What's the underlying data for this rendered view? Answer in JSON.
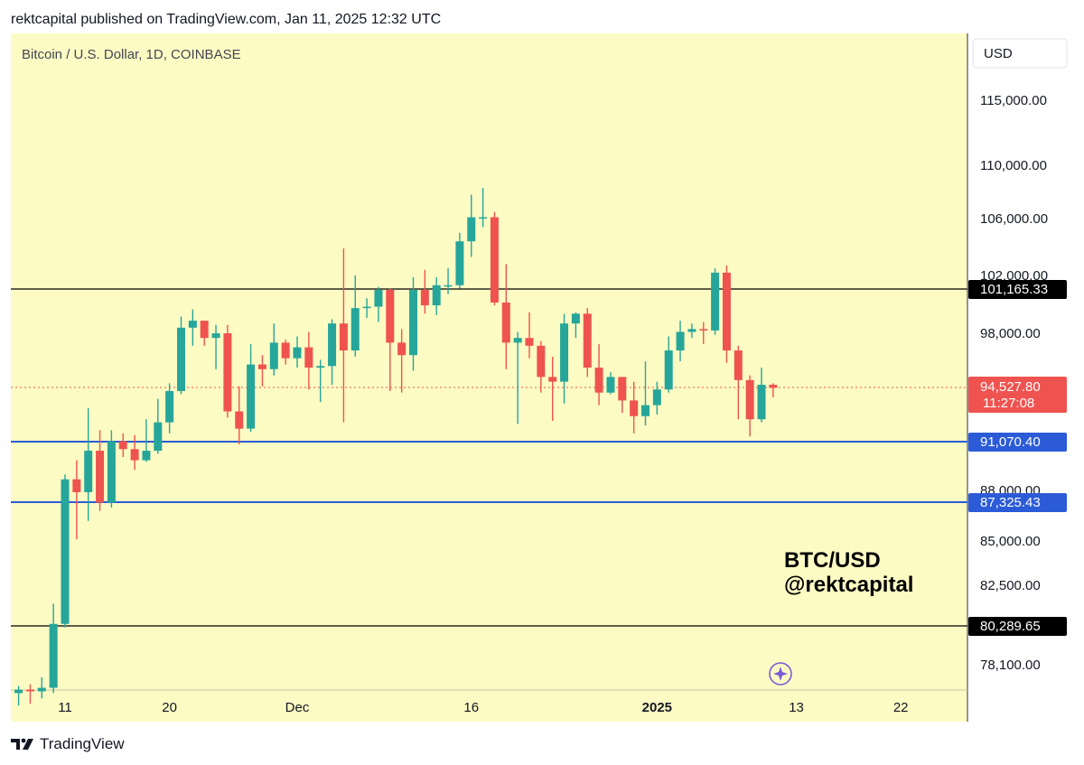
{
  "header": {
    "published": "rektcapital published on TradingView.com, Jan 11, 2025 12:32 UTC"
  },
  "footer": {
    "brand": "TradingView"
  },
  "chart_data": {
    "type": "candlestick",
    "title": "Bitcoin / U.S. Dollar, 1D, COINBASE",
    "currency_button": "USD",
    "watermark": [
      "BTC/USD",
      "@rektcapital"
    ],
    "y_ticks": [
      {
        "value": 115000,
        "label": "115,000.00"
      },
      {
        "value": 110000,
        "label": "110,000.00"
      },
      {
        "value": 106000,
        "label": "106,000.00"
      },
      {
        "value": 102000,
        "label": "102,000.00"
      },
      {
        "value": 98000,
        "label": "98,000.00"
      },
      {
        "value": 88000,
        "label": "88,000.00"
      },
      {
        "value": 85000,
        "label": "85,000.00"
      },
      {
        "value": 82500,
        "label": "82,500.00"
      },
      {
        "value": 78100,
        "label": "78,100.00"
      }
    ],
    "x_ticks": [
      {
        "label": "11",
        "date": "2024-11-11",
        "bold": false
      },
      {
        "label": "20",
        "date": "2024-11-20",
        "bold": false
      },
      {
        "label": "Dec",
        "date": "2024-12-01",
        "bold": false
      },
      {
        "label": "16",
        "date": "2024-12-16",
        "bold": false
      },
      {
        "label": "2025",
        "date": "2025-01-01",
        "bold": true
      },
      {
        "label": "13",
        "date": "2025-01-13",
        "bold": false
      },
      {
        "label": "22",
        "date": "2025-01-22",
        "bold": false
      }
    ],
    "levels": [
      {
        "price": 101165.33,
        "label": "101,165.33",
        "color": "#000000",
        "line": "solid",
        "tag_bg": "#000000"
      },
      {
        "price": 91070.4,
        "label": "91,070.40",
        "color": "#2b5bd7",
        "line": "solid",
        "tag_bg": "#2b5bd7"
      },
      {
        "price": 87325.43,
        "label": "87,325.43",
        "color": "#2b5bd7",
        "line": "solid",
        "tag_bg": "#2b5bd7"
      },
      {
        "price": 80289.65,
        "label": "80,289.65",
        "color": "#000000",
        "line": "solid",
        "tag_bg": "#000000"
      }
    ],
    "last_price": {
      "price": 94527.8,
      "label": "94,527.80",
      "countdown": "11:27:08",
      "color": "#ef5350"
    },
    "colors": {
      "up": "#26a69a",
      "down": "#ef5350",
      "background": "#fdfbc4"
    },
    "candles": [
      {
        "date": "2024-11-07",
        "o": 76500,
        "h": 76900,
        "l": 75800,
        "c": 76700
      },
      {
        "date": "2024-11-08",
        "o": 76700,
        "h": 77000,
        "l": 75900,
        "c": 76600
      },
      {
        "date": "2024-11-09",
        "o": 76600,
        "h": 77400,
        "l": 76200,
        "c": 76800
      },
      {
        "date": "2024-11-10",
        "o": 76800,
        "h": 81500,
        "l": 76500,
        "c": 80400
      },
      {
        "date": "2024-11-11",
        "o": 80400,
        "h": 89000,
        "l": 80200,
        "c": 88700
      },
      {
        "date": "2024-11-12",
        "o": 88700,
        "h": 89900,
        "l": 85100,
        "c": 87900
      },
      {
        "date": "2024-11-13",
        "o": 87900,
        "h": 93200,
        "l": 86200,
        "c": 90500
      },
      {
        "date": "2024-11-14",
        "o": 90500,
        "h": 91800,
        "l": 86800,
        "c": 87300
      },
      {
        "date": "2024-11-15",
        "o": 87300,
        "h": 91800,
        "l": 87000,
        "c": 91100
      },
      {
        "date": "2024-11-16",
        "o": 91100,
        "h": 91600,
        "l": 90100,
        "c": 90600
      },
      {
        "date": "2024-11-17",
        "o": 90600,
        "h": 91500,
        "l": 89300,
        "c": 89900
      },
      {
        "date": "2024-11-18",
        "o": 89900,
        "h": 92500,
        "l": 89800,
        "c": 90500
      },
      {
        "date": "2024-11-19",
        "o": 90500,
        "h": 93800,
        "l": 90300,
        "c": 92300
      },
      {
        "date": "2024-11-20",
        "o": 92300,
        "h": 94800,
        "l": 91600,
        "c": 94300
      },
      {
        "date": "2024-11-21",
        "o": 94300,
        "h": 99200,
        "l": 94100,
        "c": 98400
      },
      {
        "date": "2024-11-22",
        "o": 98400,
        "h": 99700,
        "l": 97200,
        "c": 98900
      },
      {
        "date": "2024-11-23",
        "o": 98900,
        "h": 98900,
        "l": 97200,
        "c": 97700
      },
      {
        "date": "2024-11-24",
        "o": 97700,
        "h": 98600,
        "l": 95700,
        "c": 98000
      },
      {
        "date": "2024-11-25",
        "o": 98000,
        "h": 98600,
        "l": 92600,
        "c": 93000
      },
      {
        "date": "2024-11-26",
        "o": 93000,
        "h": 94600,
        "l": 90900,
        "c": 91900
      },
      {
        "date": "2024-11-27",
        "o": 91900,
        "h": 97300,
        "l": 91700,
        "c": 96000
      },
      {
        "date": "2024-11-28",
        "o": 96000,
        "h": 96600,
        "l": 94600,
        "c": 95700
      },
      {
        "date": "2024-11-29",
        "o": 95700,
        "h": 98700,
        "l": 95300,
        "c": 97400
      },
      {
        "date": "2024-11-30",
        "o": 97400,
        "h": 97600,
        "l": 96000,
        "c": 96400
      },
      {
        "date": "2024-12-01",
        "o": 96400,
        "h": 97800,
        "l": 95800,
        "c": 97100
      },
      {
        "date": "2024-12-02",
        "o": 97100,
        "h": 98100,
        "l": 94400,
        "c": 95800
      },
      {
        "date": "2024-12-03",
        "o": 95800,
        "h": 96300,
        "l": 93600,
        "c": 95900
      },
      {
        "date": "2024-12-04",
        "o": 95900,
        "h": 99000,
        "l": 94700,
        "c": 98700
      },
      {
        "date": "2024-12-05",
        "o": 98700,
        "h": 103900,
        "l": 92300,
        "c": 96900
      },
      {
        "date": "2024-12-06",
        "o": 96900,
        "h": 102000,
        "l": 96500,
        "c": 99800
      },
      {
        "date": "2024-12-07",
        "o": 99800,
        "h": 100500,
        "l": 99100,
        "c": 99900
      },
      {
        "date": "2024-12-08",
        "o": 99900,
        "h": 101300,
        "l": 98800,
        "c": 101100
      },
      {
        "date": "2024-12-09",
        "o": 101100,
        "h": 101200,
        "l": 94300,
        "c": 97400
      },
      {
        "date": "2024-12-10",
        "o": 97400,
        "h": 98300,
        "l": 94200,
        "c": 96600
      },
      {
        "date": "2024-12-11",
        "o": 96600,
        "h": 101900,
        "l": 95600,
        "c": 101100
      },
      {
        "date": "2024-12-12",
        "o": 101100,
        "h": 102400,
        "l": 99400,
        "c": 100000
      },
      {
        "date": "2024-12-13",
        "o": 100000,
        "h": 101900,
        "l": 99300,
        "c": 101400
      },
      {
        "date": "2024-12-14",
        "o": 101400,
        "h": 102500,
        "l": 100800,
        "c": 101400
      },
      {
        "date": "2024-12-15",
        "o": 101400,
        "h": 105000,
        "l": 101200,
        "c": 104400
      },
      {
        "date": "2024-12-16",
        "o": 104400,
        "h": 107800,
        "l": 103300,
        "c": 106100
      },
      {
        "date": "2024-12-17",
        "o": 106100,
        "h": 108300,
        "l": 105400,
        "c": 106100
      },
      {
        "date": "2024-12-18",
        "o": 106100,
        "h": 106500,
        "l": 100000,
        "c": 100200
      },
      {
        "date": "2024-12-19",
        "o": 100200,
        "h": 102800,
        "l": 95700,
        "c": 97400
      },
      {
        "date": "2024-12-20",
        "o": 97400,
        "h": 98100,
        "l": 92200,
        "c": 97700
      },
      {
        "date": "2024-12-21",
        "o": 97700,
        "h": 99500,
        "l": 96400,
        "c": 97200
      },
      {
        "date": "2024-12-22",
        "o": 97200,
        "h": 97500,
        "l": 94200,
        "c": 95200
      },
      {
        "date": "2024-12-23",
        "o": 95200,
        "h": 96500,
        "l": 92400,
        "c": 94900
      },
      {
        "date": "2024-12-24",
        "o": 94900,
        "h": 99400,
        "l": 93500,
        "c": 98700
      },
      {
        "date": "2024-12-25",
        "o": 98700,
        "h": 99500,
        "l": 97700,
        "c": 99400
      },
      {
        "date": "2024-12-26",
        "o": 99400,
        "h": 99800,
        "l": 95200,
        "c": 95800
      },
      {
        "date": "2024-12-27",
        "o": 95800,
        "h": 97300,
        "l": 93400,
        "c": 94200
      },
      {
        "date": "2024-12-28",
        "o": 94200,
        "h": 95500,
        "l": 94100,
        "c": 95200
      },
      {
        "date": "2024-12-29",
        "o": 95200,
        "h": 95200,
        "l": 92900,
        "c": 93700
      },
      {
        "date": "2024-12-30",
        "o": 93700,
        "h": 94900,
        "l": 91600,
        "c": 92700
      },
      {
        "date": "2024-12-31",
        "o": 92700,
        "h": 96200,
        "l": 92100,
        "c": 93400
      },
      {
        "date": "2025-01-01",
        "o": 93400,
        "h": 94900,
        "l": 92800,
        "c": 94400
      },
      {
        "date": "2025-01-02",
        "o": 94400,
        "h": 97800,
        "l": 94200,
        "c": 96900
      },
      {
        "date": "2025-01-03",
        "o": 96900,
        "h": 98900,
        "l": 96200,
        "c": 98100
      },
      {
        "date": "2025-01-04",
        "o": 98100,
        "h": 98700,
        "l": 97700,
        "c": 98300
      },
      {
        "date": "2025-01-05",
        "o": 98300,
        "h": 98800,
        "l": 97300,
        "c": 98200
      },
      {
        "date": "2025-01-06",
        "o": 98200,
        "h": 102500,
        "l": 97900,
        "c": 102200
      },
      {
        "date": "2025-01-07",
        "o": 102200,
        "h": 102700,
        "l": 96100,
        "c": 96900
      },
      {
        "date": "2025-01-08",
        "o": 96900,
        "h": 97200,
        "l": 92500,
        "c": 95000
      },
      {
        "date": "2025-01-09",
        "o": 95000,
        "h": 95300,
        "l": 91400,
        "c": 92500
      },
      {
        "date": "2025-01-10",
        "o": 92500,
        "h": 95800,
        "l": 92300,
        "c": 94700
      },
      {
        "date": "2025-01-11",
        "o": 94700,
        "h": 94800,
        "l": 93900,
        "c": 94500
      }
    ]
  }
}
